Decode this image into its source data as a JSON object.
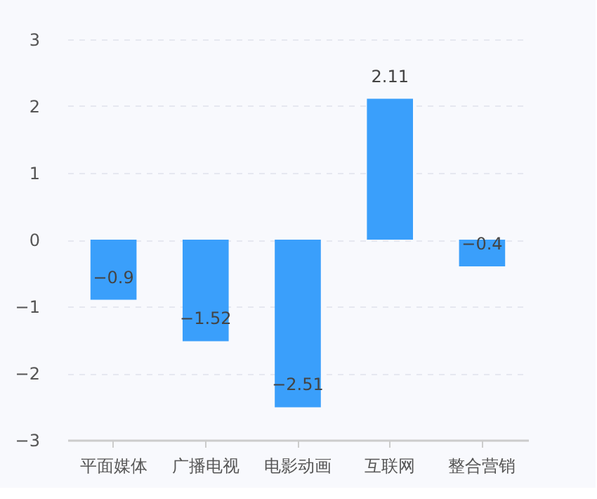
{
  "chart_data": {
    "type": "bar",
    "categories": [
      "平面媒体",
      "广播电视",
      "电影动画",
      "互联网",
      "整合营销"
    ],
    "values": [
      -0.9,
      -1.52,
      -2.51,
      2.11,
      -0.4
    ],
    "color": "#3a9ffb",
    "ylim": [
      -3,
      3
    ],
    "yticks": [
      -3,
      -2,
      -1,
      0,
      1,
      2,
      3
    ],
    "grid": "y",
    "data_labels": true
  }
}
